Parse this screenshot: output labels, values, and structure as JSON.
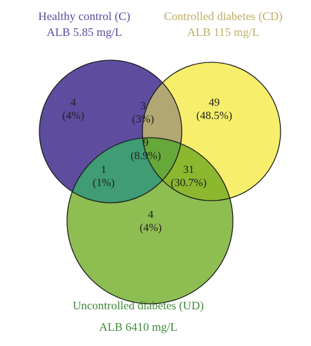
{
  "sets": {
    "c": {
      "name": "Healthy control (C)",
      "detail": "ALB 5.85 mg/L",
      "fill": "#5e4d9f",
      "text_color": "#5a4ca0"
    },
    "cd": {
      "name": "Controlled diabetes (CD)",
      "detail": "ALB 115 mg/L",
      "fill": "#f7ee6c",
      "text_color": "#bcae62"
    },
    "ud": {
      "name": "Uncontrolled diabetes (UD)",
      "detail": "ALB 6410 mg/L",
      "fill": "#7fb13c",
      "text_color": "#3f8a3a"
    }
  },
  "regions": {
    "c_only": {
      "count": "4",
      "percent": "(4%)"
    },
    "c_cd": {
      "count": "3",
      "percent": "(3%)"
    },
    "cd_only": {
      "count": "49",
      "percent": "(48.5%)"
    },
    "all": {
      "count": "9",
      "percent": "(8.9%)"
    },
    "c_ud": {
      "count": "1",
      "percent": "(1%)"
    },
    "cd_ud": {
      "count": "31",
      "percent": "(30.7%)"
    },
    "ud_only": {
      "count": "4",
      "percent": "(4%)"
    }
  }
}
